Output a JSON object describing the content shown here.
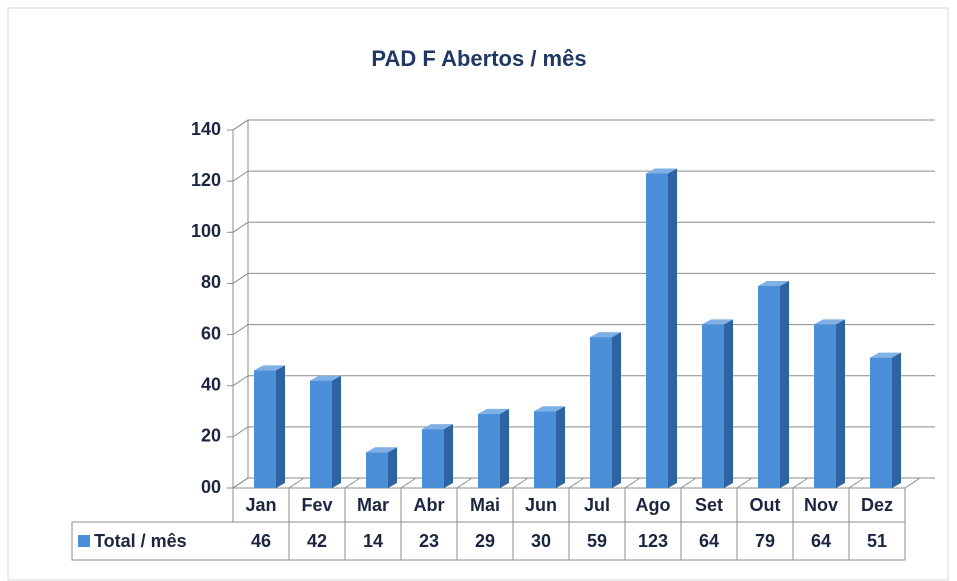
{
  "chart_data": {
    "type": "bar",
    "title": "PAD F Abertos / mês",
    "categories": [
      "Jan",
      "Fev",
      "Mar",
      "Abr",
      "Mai",
      "Jun",
      "Jul",
      "Ago",
      "Set",
      "Out",
      "Nov",
      "Dez"
    ],
    "series": [
      {
        "name": "Total / mês",
        "color": "#4a8fd8",
        "values": [
          46,
          42,
          14,
          23,
          29,
          30,
          59,
          123,
          64,
          79,
          64,
          51
        ]
      }
    ],
    "ylim": [
      0,
      140
    ],
    "yticks": [
      {
        "value": 0,
        "label": "00"
      },
      20,
      40,
      60,
      80,
      100,
      120,
      140
    ],
    "grid": true,
    "legend": "bottom-left"
  }
}
